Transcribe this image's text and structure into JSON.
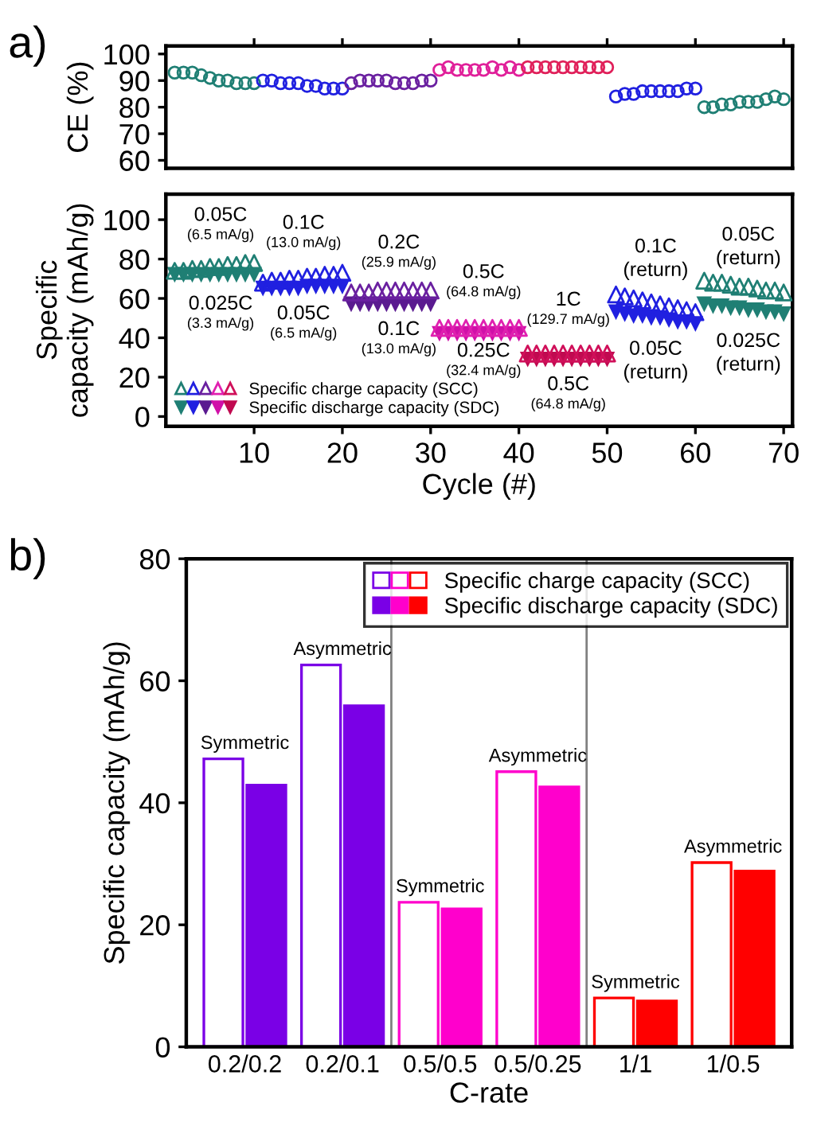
{
  "chart_data": [
    {
      "type": "scatter",
      "ylabel": "CE (%)",
      "xlim": [
        0,
        71
      ],
      "ylim": [
        57,
        103
      ],
      "xticks": [
        10,
        20,
        30,
        40,
        50,
        60,
        70
      ],
      "yticks": [
        60,
        70,
        80,
        90,
        100
      ],
      "tick_labels": "y",
      "marker": "circle",
      "grid": false,
      "annotations": [
        "a)"
      ],
      "series": [
        {
          "color": "#1f7f74",
          "x": [
            1,
            2,
            3,
            4,
            5,
            6,
            7,
            8,
            9,
            10
          ],
          "values": [
            93,
            93,
            93,
            92,
            91,
            90,
            90,
            89,
            89,
            89
          ]
        },
        {
          "color": "#2020e0",
          "x": [
            11,
            12,
            13,
            14,
            15,
            16,
            17,
            18,
            19,
            20
          ],
          "values": [
            90,
            90,
            89,
            89,
            89,
            88,
            88,
            87,
            87,
            87
          ]
        },
        {
          "color": "#6a20a0",
          "x": [
            21,
            22,
            23,
            24,
            25,
            26,
            27,
            28,
            29,
            30
          ],
          "values": [
            89,
            90,
            90,
            90,
            90,
            89,
            89,
            89,
            90,
            90
          ]
        },
        {
          "color": "#e0209a",
          "x": [
            31,
            32,
            33,
            34,
            35,
            36,
            37,
            38,
            39,
            40
          ],
          "values": [
            94,
            95,
            94,
            94,
            94,
            94,
            95,
            94,
            95,
            94
          ]
        },
        {
          "color": "#e0205a",
          "x": [
            41,
            42,
            43,
            44,
            45,
            46,
            47,
            48,
            49,
            50
          ],
          "values": [
            95,
            95,
            95,
            95,
            95,
            95,
            95,
            95,
            95,
            95
          ]
        },
        {
          "color": "#2020e0",
          "x": [
            51,
            52,
            53,
            54,
            55,
            56,
            57,
            58,
            59,
            60
          ],
          "values": [
            84,
            85,
            85,
            86,
            86,
            86,
            86,
            86,
            87,
            87
          ]
        },
        {
          "color": "#1f7f74",
          "x": [
            61,
            62,
            63,
            64,
            65,
            66,
            67,
            68,
            69,
            70
          ],
          "values": [
            80,
            80,
            81,
            81,
            82,
            82,
            82,
            83,
            84,
            83
          ]
        }
      ]
    },
    {
      "type": "scatter",
      "xlabel": "Cycle (#)",
      "ylabel": "Specific\ncapacity (mAh/g)",
      "xlim": [
        0,
        71
      ],
      "ylim": [
        -5,
        113
      ],
      "xticks": [
        10,
        20,
        30,
        40,
        50,
        60,
        70
      ],
      "yticks": [
        0,
        20,
        40,
        60,
        80,
        100
      ],
      "marker": "triangle",
      "grid": false,
      "legend": "bottom left",
      "x": [
        1,
        2,
        3,
        4,
        5,
        6,
        7,
        8,
        9,
        10,
        11,
        12,
        13,
        14,
        15,
        16,
        17,
        18,
        19,
        20,
        21,
        22,
        23,
        24,
        25,
        26,
        27,
        28,
        29,
        30,
        31,
        32,
        33,
        34,
        35,
        36,
        37,
        38,
        39,
        40,
        41,
        42,
        43,
        44,
        45,
        46,
        47,
        48,
        49,
        50,
        51,
        52,
        53,
        54,
        55,
        56,
        57,
        58,
        59,
        60,
        61,
        62,
        63,
        64,
        65,
        66,
        67,
        68,
        69,
        70
      ],
      "annotations": [
        "0.05C",
        "(6.5 mA/g)",
        "0.025C",
        "(3.3 mA/g)",
        "0.1C",
        "(13.0 mA/g)",
        "0.05C",
        "(6.5 mA/g)",
        "0.2C",
        "(25.9 mA/g)",
        "0.1C",
        "(13.0 mA/g)",
        "0.5C",
        "(64.8 mA/g)",
        "0.25C",
        "(32.4 mA/g)",
        "1C",
        "(129.7 mA/g)",
        "0.5C",
        "(64.8 mA/g)",
        "0.1C",
        "(return)",
        "0.05C",
        "(return)",
        "0.05C",
        "(return)",
        "0.025C",
        "(return)"
      ],
      "series": [
        {
          "name": "Specific charge capacity (SCC)",
          "colors": [
            "#1f7f74",
            "#1f7f74",
            "#1f7f74",
            "#1f7f74",
            "#1f7f74",
            "#1f7f74",
            "#1f7f74",
            "#1f7f74",
            "#1f7f74",
            "#1f7f74",
            "#2020e0",
            "#2020e0",
            "#2020e0",
            "#2020e0",
            "#2020e0",
            "#2020e0",
            "#2020e0",
            "#2020e0",
            "#2020e0",
            "#2020e0",
            "#6a20a0",
            "#6a20a0",
            "#6a20a0",
            "#6a20a0",
            "#6a20a0",
            "#6a20a0",
            "#6a20a0",
            "#6a20a0",
            "#6a20a0",
            "#6a20a0",
            "#e020b0",
            "#e020b0",
            "#e020b0",
            "#e020b0",
            "#e020b0",
            "#e020b0",
            "#e020b0",
            "#e020b0",
            "#e020b0",
            "#e020b0",
            "#d0105a",
            "#d0105a",
            "#d0105a",
            "#d0105a",
            "#d0105a",
            "#d0105a",
            "#d0105a",
            "#d0105a",
            "#d0105a",
            "#d0105a",
            "#2020e0",
            "#2020e0",
            "#2020e0",
            "#2020e0",
            "#2020e0",
            "#2020e0",
            "#2020e0",
            "#2020e0",
            "#2020e0",
            "#2020e0",
            "#1f7f74",
            "#1f7f74",
            "#1f7f74",
            "#1f7f74",
            "#1f7f74",
            "#1f7f74",
            "#1f7f74",
            "#1f7f74",
            "#1f7f74",
            "#1f7f74"
          ],
          "values": [
            74,
            74,
            75,
            75,
            76,
            76,
            77,
            77,
            78,
            78,
            68,
            69,
            69,
            70,
            70,
            71,
            71,
            72,
            72,
            73,
            63,
            63,
            63,
            64,
            64,
            64,
            64,
            64,
            64,
            64,
            45,
            45,
            45,
            45,
            45,
            45,
            45,
            45,
            45,
            45,
            32,
            32,
            32,
            32,
            32,
            32,
            32,
            32,
            32,
            32,
            62,
            61,
            60,
            59,
            58,
            57,
            56,
            55,
            54,
            53,
            69,
            68,
            68,
            67,
            66,
            66,
            65,
            64,
            64,
            63
          ]
        },
        {
          "name": "Specific discharge capacity (SDC)",
          "colors": [
            "#1f7f74",
            "#1f7f74",
            "#1f7f74",
            "#1f7f74",
            "#1f7f74",
            "#1f7f74",
            "#1f7f74",
            "#1f7f74",
            "#1f7f74",
            "#1f7f74",
            "#2020e0",
            "#2020e0",
            "#2020e0",
            "#2020e0",
            "#2020e0",
            "#2020e0",
            "#2020e0",
            "#2020e0",
            "#2020e0",
            "#2020e0",
            "#5a1a90",
            "#5a1a90",
            "#5a1a90",
            "#5a1a90",
            "#5a1a90",
            "#5a1a90",
            "#5a1a90",
            "#5a1a90",
            "#5a1a90",
            "#5a1a90",
            "#d010a8",
            "#d010a8",
            "#d010a8",
            "#d010a8",
            "#d010a8",
            "#d010a8",
            "#d010a8",
            "#d010a8",
            "#d010a8",
            "#d010a8",
            "#c00a50",
            "#c00a50",
            "#c00a50",
            "#c00a50",
            "#c00a50",
            "#c00a50",
            "#c00a50",
            "#c00a50",
            "#c00a50",
            "#c00a50",
            "#2020e0",
            "#2020e0",
            "#2020e0",
            "#2020e0",
            "#2020e0",
            "#2020e0",
            "#2020e0",
            "#2020e0",
            "#2020e0",
            "#2020e0",
            "#1f7f74",
            "#1f7f74",
            "#1f7f74",
            "#1f7f74",
            "#1f7f74",
            "#1f7f74",
            "#1f7f74",
            "#1f7f74",
            "#1f7f74",
            "#1f7f74"
          ],
          "values": [
            72,
            72,
            72,
            72,
            72,
            72,
            72,
            72,
            72,
            72,
            65,
            65,
            65,
            65,
            65,
            66,
            66,
            66,
            66,
            66,
            57,
            57,
            57,
            57,
            57,
            57,
            57,
            57,
            57,
            57,
            42,
            42,
            42,
            42,
            42,
            42,
            42,
            42,
            42,
            42,
            29,
            29,
            29,
            29,
            29,
            29,
            29,
            29,
            29,
            29,
            53,
            52,
            51,
            51,
            50,
            50,
            49,
            48,
            48,
            47,
            57,
            56,
            56,
            55,
            55,
            54,
            54,
            53,
            53,
            52
          ]
        }
      ]
    },
    {
      "type": "bar",
      "xlabel": "C-rate",
      "ylabel": "Specific capacity (mAh/g)",
      "ylim": [
        0,
        80
      ],
      "yticks": [
        0,
        20,
        40,
        60,
        80
      ],
      "grid": false,
      "legend": "top right",
      "annotations": [
        "b)"
      ],
      "categories": [
        "0.2/0.2",
        "0.2/0.1",
        "0.5/0.5",
        "0.5/0.25",
        "1/1",
        "1/0.5"
      ],
      "series": [
        {
          "name": "Specific charge capacity (SCC)",
          "colors": [
            "#7a00e6",
            "#7a00e6",
            "#ff00cc",
            "#ff00cc",
            "#ff0000",
            "#ff0000"
          ],
          "values": [
            47.2,
            62.6,
            23.7,
            45.1,
            8.0,
            30.2
          ],
          "value_labels": [
            "Symmetric",
            "Asymmetric",
            "Symmetric",
            "Asymmetric",
            "Symmetric",
            "Asymmetric"
          ]
        },
        {
          "name": "Specific discharge capacity (SDC)",
          "colors": [
            "#7a00e6",
            "#7a00e6",
            "#ff00cc",
            "#ff00cc",
            "#ff0000",
            "#ff0000"
          ],
          "values": [
            42.9,
            55.9,
            22.6,
            42.6,
            7.5,
            28.8
          ]
        }
      ]
    }
  ]
}
